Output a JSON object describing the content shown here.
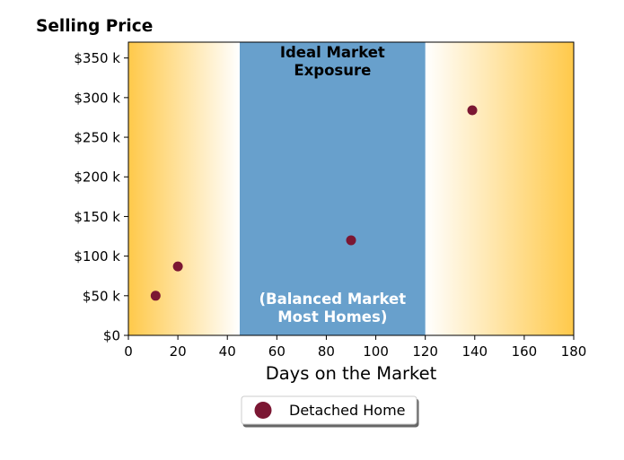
{
  "chart_data": {
    "type": "scatter",
    "title": "Selling Price",
    "xlabel": "Days on the Market",
    "ylabel": "",
    "xlim": [
      0,
      180
    ],
    "ylim": [
      0,
      370000
    ],
    "x_ticks": [
      0,
      20,
      40,
      60,
      80,
      100,
      120,
      140,
      160,
      180
    ],
    "x_tick_labels": [
      "0",
      "20",
      "40",
      "60",
      "80",
      "100",
      "120",
      "140",
      "160",
      "180"
    ],
    "y_ticks": [
      0,
      50000,
      100000,
      150000,
      200000,
      250000,
      300000,
      350000
    ],
    "y_tick_labels": [
      "$0",
      "$50 k",
      "$100 k",
      "$150 k",
      "$200 k",
      "$250 k",
      "$300 k",
      "$350 k"
    ],
    "series": [
      {
        "name": "Detached Home",
        "color": "#7b1733",
        "points": [
          {
            "x": 11,
            "y": 50000
          },
          {
            "x": 20,
            "y": 87000
          },
          {
            "x": 90,
            "y": 120000
          },
          {
            "x": 139,
            "y": 284000
          }
        ]
      }
    ],
    "shaded_region": {
      "x_start": 45,
      "x_end": 120,
      "color": "#68a0cc",
      "label_top": [
        "Ideal Market",
        "Exposure"
      ],
      "label_bottom": [
        "(Balanced Market",
        "Most Homes)"
      ]
    },
    "gradient_regions": {
      "left": {
        "x_start": 0,
        "x_end": 45
      },
      "right": {
        "x_start": 120,
        "x_end": 180
      },
      "edge_color": "#ffc94a",
      "inner_color": "#ffffff"
    },
    "grid": false,
    "legend_position": "bottom-center"
  }
}
